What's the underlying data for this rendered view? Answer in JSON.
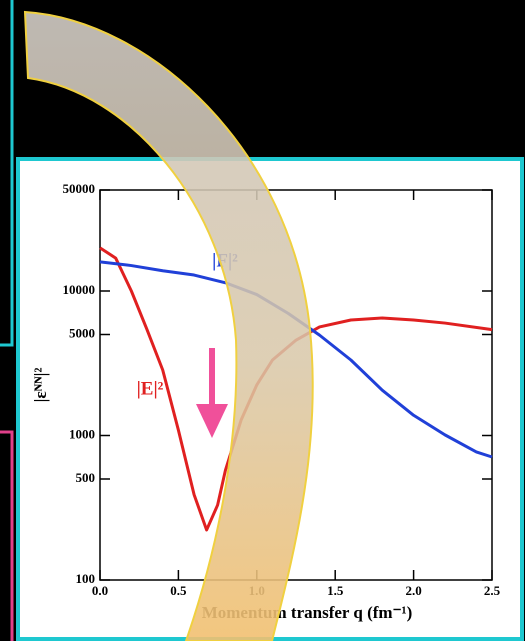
{
  "chart_data": {
    "type": "line",
    "xlabel": "Momentum transfer q (fm⁻¹)",
    "ylabel": "|ɛᴺᴺ|²",
    "xlim": [
      0,
      2.5
    ],
    "xticks": [
      {
        "value": 0,
        "label": "0.0"
      },
      0.5,
      {
        "value": 1,
        "label": "1.0"
      },
      1.5,
      {
        "value": 2,
        "label": "2.0"
      },
      2.5
    ],
    "ylim": [
      100,
      50000
    ],
    "yticks": [
      100,
      500,
      1000,
      5000,
      10000,
      50000
    ],
    "yscale": "log",
    "series": [
      {
        "name": "|E|²",
        "color": "#e02020",
        "x": [
          0,
          0.1,
          0.2,
          0.3,
          0.4,
          0.5,
          0.6,
          0.68,
          0.75,
          0.8,
          0.9,
          1.0,
          1.1,
          1.25,
          1.4,
          1.6,
          1.8,
          2.0,
          2.2,
          2.5
        ],
        "values": [
          19900,
          16900,
          10000,
          5400,
          2840,
          1090,
          390,
          222,
          330,
          575,
          1280,
          2240,
          3330,
          4570,
          5640,
          6300,
          6500,
          6300,
          6000,
          5400
        ]
      },
      {
        "name": "|F|²",
        "color": "#2040d8",
        "x": [
          0,
          0.2,
          0.4,
          0.6,
          0.8,
          1.0,
          1.2,
          1.4,
          1.6,
          1.8,
          2.0,
          2.2,
          2.4,
          2.5
        ],
        "values": [
          15900,
          15000,
          13800,
          12900,
          11400,
          9450,
          7000,
          4950,
          3330,
          2060,
          1380,
          1010,
          770,
          710
        ]
      }
    ]
  }
}
